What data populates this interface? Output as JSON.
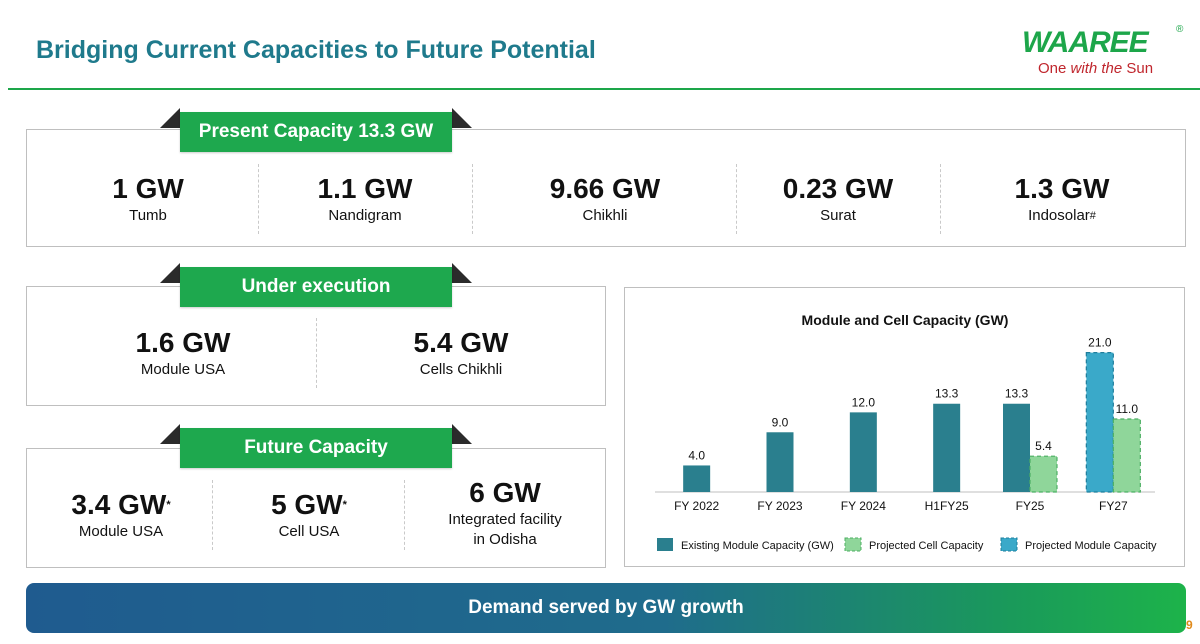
{
  "title": "Bridging Current Capacities to Future Potential",
  "logo": {
    "brand": "WAAREE",
    "reg": "®",
    "tagline_1": "One",
    "tagline_2": "with the",
    "tagline_3": "Sun"
  },
  "present": {
    "label": "Present Capacity 13.3 GW",
    "items": [
      {
        "value": "1 GW",
        "name": "Tumb",
        "mark": ""
      },
      {
        "value": "1.1 GW",
        "name": "Nandigram",
        "mark": ""
      },
      {
        "value": "9.66 GW",
        "name": "Chikhli",
        "mark": ""
      },
      {
        "value": "0.23 GW",
        "name": "Surat",
        "mark": ""
      },
      {
        "value": "1.3 GW",
        "name": "Indosolar",
        "mark": "#"
      }
    ]
  },
  "execution": {
    "label": "Under execution",
    "items": [
      {
        "value": "1.6 GW",
        "name": "Module USA"
      },
      {
        "value": "5.4 GW",
        "name": "Cells Chikhli"
      }
    ]
  },
  "future": {
    "label": "Future Capacity",
    "items": [
      {
        "value": "3.4 GW",
        "mark": "*",
        "line1": "Module USA",
        "line2": ""
      },
      {
        "value": "5 GW",
        "mark": "*",
        "line1": "Cell USA",
        "line2": ""
      },
      {
        "value": "6 GW",
        "mark": "",
        "line1": "Integrated facility",
        "line2": "in Odisha"
      }
    ]
  },
  "chart_data": {
    "type": "bar",
    "title": "Module and Cell Capacity (GW)",
    "categories": [
      "FY 2022",
      "FY 2023",
      "FY 2024",
      "H1FY25",
      "FY25",
      "FY27"
    ],
    "series": [
      {
        "name": "Existing Module Capacity (GW)",
        "color": "#2a7f8e",
        "values": [
          4.0,
          9.0,
          12.0,
          13.3,
          13.3,
          null
        ]
      },
      {
        "name": "Projected Module Capacity",
        "color": "#3aa9c9",
        "values": [
          null,
          null,
          null,
          null,
          null,
          21.0
        ]
      },
      {
        "name": "Projected Cell Capacity",
        "color": "#8fd69a",
        "values": [
          null,
          null,
          null,
          null,
          5.4,
          11.0
        ]
      }
    ],
    "ylim": [
      0,
      22
    ],
    "xlabel": "",
    "ylabel": "",
    "legend": "bottom"
  },
  "banner": "Demand served by GW growth",
  "page_number": "9"
}
